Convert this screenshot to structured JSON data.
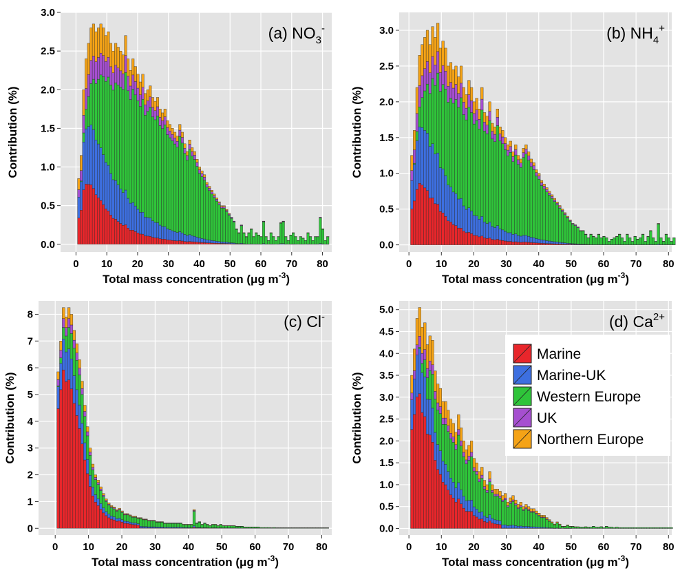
{
  "figure": {
    "legend": {
      "entries": [
        "Marine",
        "Marine-UK",
        "Western Europe",
        "UK",
        "Northern Europe"
      ]
    }
  },
  "colors": {
    "Marine": "#e8262b",
    "Marine-UK": "#3d6fe0",
    "Western Europe": "#2fc43a",
    "UK": "#a64fd0",
    "Northern Europe": "#f5a316",
    "panel_bg": "#e3e3e3",
    "grid": "#ffffff"
  },
  "chart_data": [
    {
      "type": "bar",
      "stacked": true,
      "panel_label": "(a) NO",
      "panel_label_sub": "3",
      "panel_label_sup": "-",
      "xlabel": "Total mass concentration (μg m",
      "xlabel_sup": "-3",
      "xlabel_end": ")",
      "ylabel": "Contribution (%)",
      "xlim": [
        -5,
        83
      ],
      "ylim": [
        -0.1,
        3.0
      ],
      "xticks": [
        "0",
        "10",
        "20",
        "30",
        "40",
        "50",
        "60",
        "70",
        "80"
      ],
      "yticks": [
        "0.0",
        "0.5",
        "1.0",
        "1.5",
        "2.0",
        "2.5",
        "3.0"
      ],
      "grid": true,
      "series_order": [
        "Marine",
        "Marine-UK",
        "Western Europe",
        "UK",
        "Northern Europe"
      ],
      "bins": {
        "start": 0.5,
        "width": 0.8
      },
      "totals": [
        0.85,
        1.15,
        2.0,
        2.4,
        2.6,
        2.8,
        2.85,
        2.75,
        2.8,
        2.85,
        2.8,
        2.7,
        2.75,
        2.6,
        2.5,
        2.6,
        2.55,
        2.5,
        2.45,
        2.7,
        2.4,
        2.25,
        2.4,
        2.3,
        2.2,
        2.1,
        2.2,
        1.95,
        2.0,
        2.05,
        1.9,
        1.85,
        1.9,
        1.75,
        1.7,
        1.75,
        1.6,
        1.55,
        1.5,
        1.45,
        1.4,
        1.55,
        1.45,
        1.3,
        1.2,
        1.35,
        1.25,
        1.2,
        1.1,
        1.0,
        0.95,
        0.9,
        0.8,
        0.75,
        0.7,
        0.65,
        0.6,
        0.55,
        0.5,
        0.5,
        0.45,
        0.4,
        0.35,
        0.3,
        0.2,
        0.15,
        0.25,
        0.15,
        0.1,
        0.15,
        0.2,
        0.1,
        0.15,
        0.12,
        0.1,
        0.3,
        0.1,
        0.05,
        0.15,
        0.1,
        0.05,
        0.1,
        0.28,
        0.3,
        0.1,
        0.05,
        0.12,
        0.15,
        0.1,
        0.05,
        0.1,
        0.08,
        0.05,
        0.15,
        0.1,
        0.05,
        0.1,
        0.1,
        0.35,
        0.2,
        0.05,
        0.1
      ],
      "total_peak_note": "peak about 2.85 near 10",
      "values_note": "totals are approximate stack heights per bin"
    },
    {
      "type": "bar",
      "stacked": true,
      "panel_label": "(b) NH",
      "panel_label_sub": "4",
      "panel_label_sup": "+",
      "xlabel": "Total mass concentration (μg m",
      "xlabel_sup": "-3",
      "xlabel_end": ")",
      "ylabel": "Contribution (%)",
      "xlim": [
        -3,
        81
      ],
      "ylim": [
        -0.1,
        3.25
      ],
      "xticks": [
        "0",
        "10",
        "20",
        "30",
        "40",
        "50",
        "60",
        "70",
        "80"
      ],
      "yticks": [
        "0.0",
        "0.5",
        "1.0",
        "1.5",
        "2.0",
        "2.5",
        "3.0"
      ],
      "grid": true,
      "series_order": [
        "Marine",
        "Marine-UK",
        "Western Europe",
        "UK",
        "Northern Europe"
      ],
      "bins": {
        "start": 0.5,
        "width": 0.8
      },
      "totals": [
        1.25,
        1.6,
        2.2,
        2.65,
        2.8,
        2.9,
        3.0,
        2.8,
        3.05,
        2.9,
        3.1,
        2.75,
        2.85,
        2.75,
        2.5,
        2.55,
        2.45,
        2.5,
        2.35,
        2.5,
        2.2,
        2.1,
        2.3,
        2.2,
        2.0,
        2.05,
        1.9,
        2.2,
        1.85,
        1.8,
        2.0,
        1.7,
        1.65,
        1.9,
        1.65,
        1.6,
        1.5,
        1.4,
        1.45,
        1.3,
        1.4,
        1.25,
        1.2,
        1.35,
        1.4,
        1.3,
        1.2,
        1.15,
        1.05,
        1.0,
        0.9,
        0.85,
        0.8,
        0.75,
        0.7,
        0.65,
        0.6,
        0.55,
        0.5,
        0.45,
        0.4,
        0.35,
        0.3,
        0.28,
        0.25,
        0.2,
        0.2,
        0.15,
        0.1,
        0.15,
        0.12,
        0.1,
        0.15,
        0.1,
        0.12,
        0.1,
        0.05,
        0.08,
        0.1,
        0.12,
        0.15,
        0.1,
        0.05,
        0.15,
        0.1,
        0.05,
        0.12,
        0.08,
        0.1,
        0.15,
        0.05,
        0.12,
        0.2,
        0.1,
        0.05,
        0.3,
        0.1,
        0.05,
        0.15,
        0.1,
        0.05,
        0.1
      ],
      "values_note": "totals are approximate stack heights per bin"
    },
    {
      "type": "bar",
      "stacked": true,
      "panel_label": "(c) Cl",
      "panel_label_sub": "",
      "panel_label_sup": "-",
      "xlabel": "Total mass concentration (μg m",
      "xlabel_sup": "-3",
      "xlabel_end": ")",
      "ylabel": "Contribution (%)",
      "xlim": [
        -5,
        83
      ],
      "ylim": [
        -0.25,
        8.5
      ],
      "xticks": [
        "0",
        "10",
        "20",
        "30",
        "40",
        "50",
        "60",
        "70",
        "80"
      ],
      "yticks": [
        "0",
        "1",
        "2",
        "3",
        "4",
        "5",
        "6",
        "7",
        "8"
      ],
      "grid": true,
      "series_order": [
        "Marine",
        "Marine-UK",
        "Western Europe",
        "UK",
        "Northern Europe"
      ],
      "bins": {
        "start": 0.5,
        "width": 0.8
      },
      "totals": [
        5.85,
        7.0,
        8.25,
        7.9,
        8.25,
        8.0,
        7.4,
        6.9,
        6.3,
        5.5,
        4.6,
        3.8,
        3.0,
        2.4,
        2.0,
        1.8,
        1.55,
        1.3,
        1.1,
        0.95,
        0.85,
        0.8,
        0.7,
        0.75,
        0.65,
        0.55,
        0.55,
        0.5,
        0.45,
        0.45,
        0.4,
        0.4,
        0.35,
        0.35,
        0.3,
        0.3,
        0.3,
        0.25,
        0.25,
        0.25,
        0.2,
        0.2,
        0.2,
        0.2,
        0.2,
        0.2,
        0.2,
        0.15,
        0.15,
        0.15,
        0.15,
        0.7,
        0.2,
        0.25,
        0.15,
        0.2,
        0.15,
        0.1,
        0.15,
        0.15,
        0.1,
        0.15,
        0.1,
        0.1,
        0.1,
        0.1,
        0.1,
        0.08,
        0.08,
        0.08,
        0.05,
        0.05,
        0.05,
        0.05,
        0.05,
        0.05,
        0.03,
        0.03,
        0.03,
        0.03,
        0.02,
        0.03,
        0.02,
        0.02,
        0.02,
        0.02,
        0.02,
        0.02,
        0.02,
        0.02,
        0.02,
        0.02,
        0.02,
        0.02,
        0.02,
        0.02,
        0.02,
        0.02,
        0.02,
        0.02,
        0.02,
        0.02
      ],
      "values_note": "totals are approximate stack heights per bin"
    },
    {
      "type": "bar",
      "stacked": true,
      "panel_label": "(d) Ca",
      "panel_label_sub": "",
      "panel_label_sup": "2+",
      "xlabel": "Total mass concentration (μg m",
      "xlabel_sup": "-3",
      "xlabel_end": ")",
      "ylabel": "Contribution (%)",
      "xlim": [
        -3,
        81
      ],
      "ylim": [
        -0.15,
        5.2
      ],
      "xticks": [
        "0",
        "10",
        "20",
        "30",
        "40",
        "50",
        "60",
        "70",
        "80"
      ],
      "yticks": [
        "0.0",
        "0.5",
        "1.0",
        "1.5",
        "2.0",
        "2.5",
        "3.0",
        "3.5",
        "4.0",
        "4.5",
        "5.0"
      ],
      "grid": true,
      "legend_position": "upper-right",
      "series_order": [
        "Marine",
        "Marine-UK",
        "Western Europe",
        "UK",
        "Northern Europe"
      ],
      "bins": {
        "start": 0.5,
        "width": 0.8
      },
      "totals": [
        3.5,
        4.1,
        4.8,
        5.05,
        4.6,
        4.7,
        4.2,
        4.4,
        4.3,
        3.6,
        3.3,
        3.2,
        2.9,
        2.9,
        2.7,
        2.5,
        2.4,
        2.2,
        2.6,
        2.3,
        2.0,
        1.8,
        1.9,
        2.0,
        1.6,
        1.5,
        1.3,
        1.4,
        1.1,
        1.0,
        1.3,
        1.0,
        0.9,
        0.9,
        0.85,
        0.75,
        0.8,
        0.6,
        0.7,
        0.75,
        0.65,
        0.55,
        0.6,
        0.5,
        0.55,
        0.5,
        0.45,
        0.45,
        0.4,
        0.35,
        0.3,
        0.3,
        0.25,
        0.2,
        0.15,
        0.1,
        0.15,
        0.1,
        0.05,
        0.05,
        0.08,
        0.05,
        0.05,
        0.04,
        0.04,
        0.03,
        0.03,
        0.04,
        0.03,
        0.03,
        0.05,
        0.03,
        0.03,
        0.04,
        0.02,
        0.05,
        0.03,
        0.03,
        0.02,
        0.03,
        0.02,
        0.02,
        0.02,
        0.02,
        0.02,
        0.02,
        0.02,
        0.02,
        0.02,
        0.02,
        0.02,
        0.02,
        0.02,
        0.02,
        0.02,
        0.02,
        0.02,
        0.02,
        0.02,
        0.02,
        0.02
      ],
      "values_note": "totals are approximate stack heights per bin"
    }
  ]
}
